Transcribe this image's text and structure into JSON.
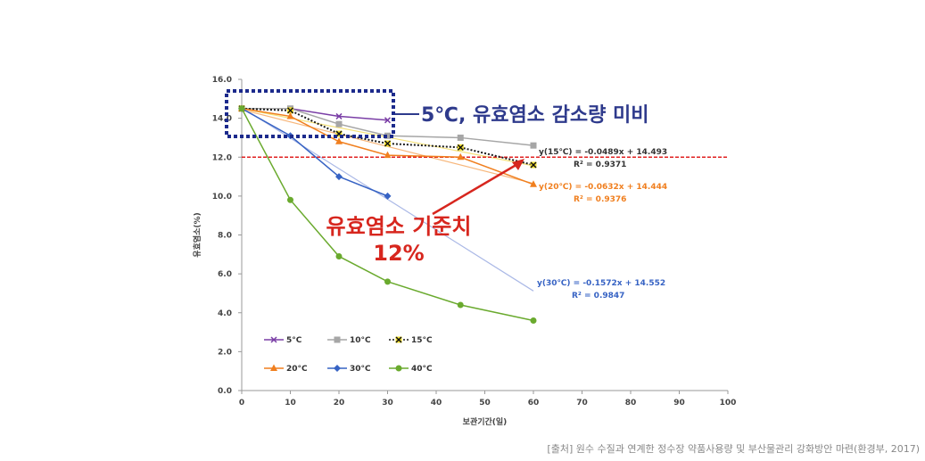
{
  "chart_data": {
    "type": "line",
    "xlabel": "보관기간(일)",
    "ylabel": "유효염소(%)",
    "xlim": [
      0,
      100
    ],
    "ylim": [
      0,
      16
    ],
    "xticks": [
      0,
      10,
      20,
      30,
      40,
      50,
      60,
      70,
      80,
      90,
      100
    ],
    "yticks": [
      "0.0",
      "2.0",
      "4.0",
      "6.0",
      "8.0",
      "10.0",
      "12.0",
      "14.0",
      "16.0"
    ],
    "grid": false,
    "legend_position": "bottom-left",
    "series": [
      {
        "name": "5°C",
        "color": "#7a3ea6",
        "marker": "x",
        "x": [
          0,
          10,
          20,
          30
        ],
        "y": [
          14.5,
          14.5,
          14.1,
          13.9
        ]
      },
      {
        "name": "10°C",
        "color": "#a6a6a6",
        "marker": "square",
        "x": [
          0,
          10,
          20,
          30,
          45,
          60
        ],
        "y": [
          14.5,
          14.5,
          13.7,
          13.1,
          13.0,
          12.6
        ]
      },
      {
        "name": "15°C",
        "color": "#1a1a1a",
        "marker": "x-yellow",
        "x": [
          0,
          10,
          20,
          30,
          45,
          60
        ],
        "y": [
          14.5,
          14.4,
          13.2,
          12.7,
          12.5,
          11.6
        ]
      },
      {
        "name": "20°C",
        "color": "#f07f1f",
        "marker": "triangle",
        "x": [
          0,
          10,
          20,
          30,
          45,
          60
        ],
        "y": [
          14.5,
          14.1,
          12.8,
          12.1,
          12.0,
          10.6
        ]
      },
      {
        "name": "30°C",
        "color": "#3763c4",
        "marker": "diamond",
        "x": [
          0,
          10,
          20,
          30
        ],
        "y": [
          14.5,
          13.1,
          11.0,
          10.0
        ]
      },
      {
        "name": "40°C",
        "color": "#6aaa2e",
        "marker": "circle",
        "x": [
          0,
          10,
          20,
          30,
          45,
          60
        ],
        "y": [
          14.5,
          9.8,
          6.9,
          5.6,
          4.4,
          3.6
        ]
      }
    ],
    "trendlines": [
      {
        "series": "15°C",
        "slope": -0.0489,
        "intercept": 14.493,
        "color": "#f5e27a",
        "equation": "y(15℃) = -0.0489x + 14.493",
        "r2": "R² = 0.9371",
        "eq_color": "#333333"
      },
      {
        "series": "20°C",
        "slope": -0.0632,
        "intercept": 14.444,
        "color": "#f7b77c",
        "equation": "y(20℃) = -0.0632x + 14.444",
        "r2": "R² = 0.9376",
        "eq_color": "#f07f1f"
      },
      {
        "series": "30°C",
        "slope": -0.1572,
        "intercept": 14.552,
        "color": "#aab8e6",
        "equation": "y(30℃) = -0.1572x + 14.552",
        "r2": "R² = 0.9847",
        "eq_color": "#3763c4"
      }
    ],
    "reference_line": {
      "y": 12.0,
      "color": "#e02020"
    },
    "annotations": {
      "low_temp": "5℃, 유효염소 감소량 미비",
      "standard_line1": "유효염소 기준치",
      "standard_line2": "12%"
    }
  },
  "source": "[출처] 원수 수질과 연계한 정수장 약품사용량 및 부산물관리 강화방안 마련(환경부, 2017)",
  "colors": {
    "callout_blue": "#2e3a8c",
    "callout_red": "#d7261e"
  }
}
